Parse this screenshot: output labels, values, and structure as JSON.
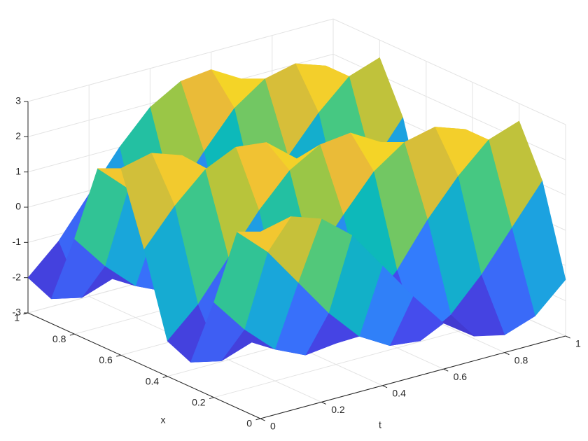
{
  "chart_data": {
    "type": "surface",
    "xlabel": "x",
    "ylabel": "t",
    "x": [
      0,
      0.1,
      0.2,
      0.3,
      0.4,
      0.5,
      0.6,
      0.7,
      0.8,
      0.9,
      1
    ],
    "y": [
      0,
      0.1,
      0.2,
      0.3,
      0.4,
      0.5,
      0.6,
      0.7,
      0.8,
      0.9,
      1
    ],
    "z": [
      [
        2.3,
        2.5,
        2.2,
        1.5,
        0.4,
        -0.7,
        -1.7,
        -2.3,
        -2.5,
        -2.2,
        -1.4
      ],
      [
        2.0,
        1.2,
        0.1,
        -1.0,
        -1.9,
        -2.4,
        -2.5,
        -2.0,
        -1.1,
        0,
        1.1
      ],
      [
        -0.3,
        -1.3,
        -2.1,
        -2.5,
        -2.4,
        -1.7,
        -0.8,
        0.4,
        1.4,
        2.2,
        2.5
      ],
      [
        -2.3,
        -2.5,
        -2.2,
        -1.5,
        -0.4,
        0.7,
        1.7,
        2.3,
        2.5,
        2.2,
        1.4
      ],
      [
        -2.0,
        -1.2,
        -0.1,
        1.0,
        1.9,
        2.4,
        2.5,
        2.0,
        1.1,
        0,
        -1.1
      ],
      [
        0.3,
        1.3,
        2.1,
        2.5,
        2.4,
        1.7,
        0.8,
        -0.4,
        -1.4,
        -2.2,
        -2.5
      ],
      [
        2.3,
        2.5,
        2.2,
        1.5,
        0.4,
        -0.7,
        -1.7,
        -2.3,
        -2.5,
        -2.2,
        -1.4
      ],
      [
        2.0,
        1.2,
        0.1,
        -1.0,
        -1.9,
        -2.4,
        -2.5,
        -2.0,
        -1.1,
        0,
        1.1
      ],
      [
        -0.3,
        -1.3,
        -2.1,
        -2.5,
        -2.4,
        -1.7,
        -0.8,
        0.4,
        1.4,
        2.2,
        2.5
      ],
      [
        -2.3,
        -2.5,
        -2.2,
        -1.5,
        -0.4,
        0.7,
        1.7,
        2.3,
        2.5,
        2.2,
        1.4
      ],
      [
        -2.0,
        -1.2,
        -0.1,
        1.0,
        1.9,
        2.4,
        2.5,
        2.0,
        1.1,
        0,
        -1.1
      ]
    ],
    "colormap": "parula",
    "xlim": [
      0,
      1
    ],
    "xticks": [
      0,
      0.2,
      0.4,
      0.6,
      0.8,
      1
    ],
    "ylim": [
      0,
      1
    ],
    "yticks": [
      0,
      0.2,
      0.4,
      0.6,
      0.8,
      1
    ],
    "zlim": [
      -3,
      3
    ],
    "zticks": [
      -3,
      -2,
      -1,
      0,
      1,
      2,
      3
    ],
    "grid": true
  }
}
